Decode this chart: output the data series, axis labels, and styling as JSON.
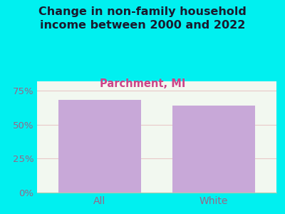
{
  "categories": [
    "All",
    "White"
  ],
  "values": [
    68.5,
    64.0
  ],
  "bar_color": "#c8a8d8",
  "title": "Change in non-family household\nincome between 2000 and 2022",
  "subtitle": "Parchment, MI",
  "title_color": "#1a1a2e",
  "subtitle_color": "#cc4488",
  "background_color": "#00f0f0",
  "plot_bg_top": "#f0f7f0",
  "plot_bg_bottom": "#e8f5e8",
  "ylabel": "",
  "yticks": [
    0,
    25,
    50,
    75
  ],
  "ytick_labels": [
    "0%",
    "25%",
    "50%",
    "75%"
  ],
  "ylim": [
    0,
    82
  ],
  "grid_color": "#e8c8c8",
  "tick_color": "#996688",
  "bar_width": 0.72,
  "title_fontsize": 11.5,
  "subtitle_fontsize": 10.5,
  "axis_label_fontsize": 10
}
